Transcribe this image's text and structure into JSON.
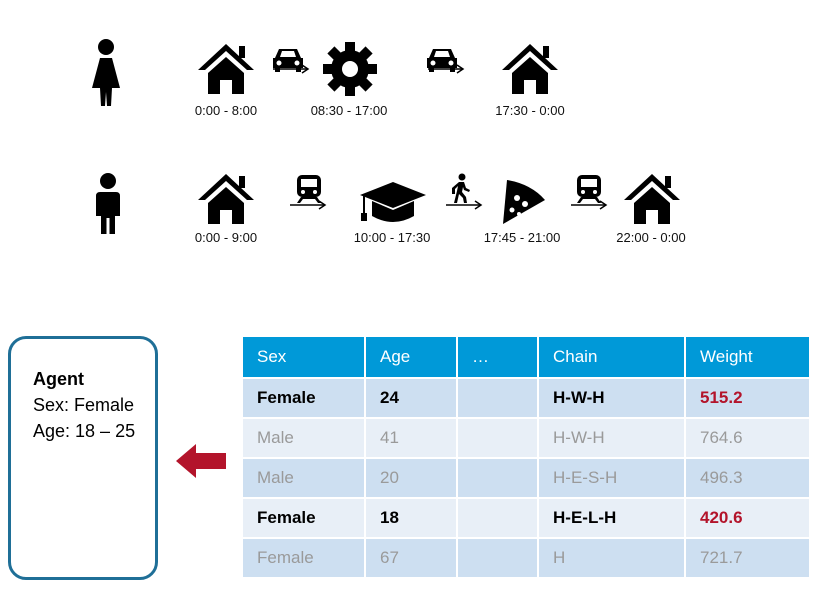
{
  "timeline_female": {
    "icons": [
      "female-icon",
      "house-icon",
      "car-icon",
      "gear-icon",
      "car-icon",
      "house-icon"
    ],
    "labels": [
      "0:00 - 8:00",
      "08:30 - 17:00",
      "17:30 - 0:00"
    ]
  },
  "timeline_male": {
    "icons": [
      "male-icon",
      "house-icon",
      "train-icon",
      "graduation-cap-icon",
      "walking-icon",
      "pizza-icon",
      "train-icon",
      "house-icon"
    ],
    "labels": [
      "0:00 - 9:00",
      "10:00 - 17:30",
      "17:45 - 21:00",
      "22:00 - 0:00"
    ]
  },
  "agent": {
    "title": "Agent",
    "sex": "Sex: Female",
    "age": "Age: 18 – 25"
  },
  "arrow_color": "#b3142b",
  "table": {
    "headers": [
      "Sex",
      "Age",
      "…",
      "Chain",
      "Weight"
    ],
    "rows": [
      [
        "Female",
        "24",
        "",
        "H-W-H",
        "515.2"
      ],
      [
        "Male",
        "41",
        "",
        "H-W-H",
        "764.6"
      ],
      [
        "Male",
        "20",
        "",
        "H-E-S-H",
        "496.3"
      ],
      [
        "Female",
        "18",
        "",
        "H-E-L-H",
        "420.6"
      ],
      [
        "Female",
        "67",
        "",
        "H",
        "721.7"
      ]
    ]
  }
}
